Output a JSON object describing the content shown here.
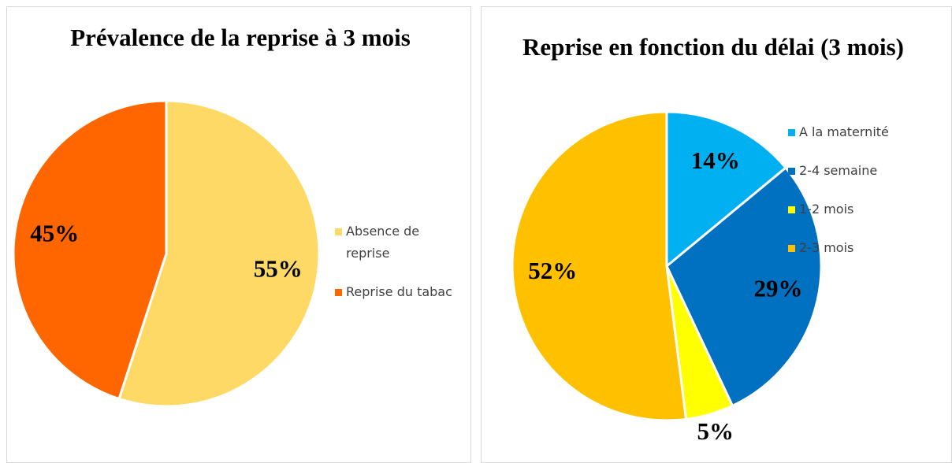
{
  "chart_data": [
    {
      "type": "pie",
      "title": "Prévalence de la reprise à 3 mois",
      "categories": [
        "Absence de reprise",
        "Reprise du tabac"
      ],
      "values": [
        55,
        45
      ],
      "value_labels": [
        "55%",
        "45%"
      ],
      "colors": [
        "#ffd966",
        "#ff6600"
      ]
    },
    {
      "type": "pie",
      "title": "Reprise en fonction du délai (3 mois)",
      "categories": [
        "A la maternité",
        "2-4 semaine",
        "1-2 mois",
        "2-3 mois"
      ],
      "values": [
        14,
        29,
        5,
        52
      ],
      "value_labels": [
        "14%",
        "29%",
        "5%",
        "52%"
      ],
      "colors": [
        "#00b0f0",
        "#0070c0",
        "#ffff00",
        "#ffc000"
      ]
    }
  ]
}
